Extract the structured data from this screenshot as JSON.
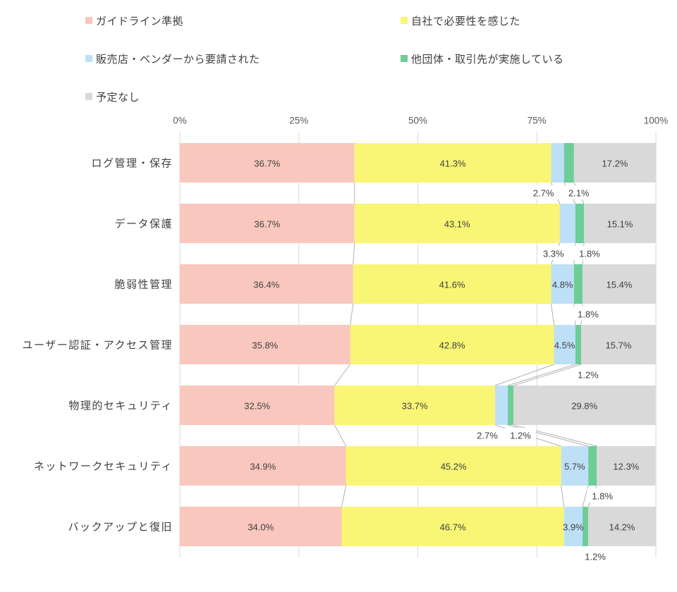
{
  "chart_data": {
    "type": "bar",
    "variant": "stacked-100-horizontal",
    "title": "",
    "xlabel": "",
    "ylabel": "",
    "xlim": [
      0,
      100
    ],
    "unit": "%",
    "grid": true,
    "legend_position": "top",
    "x_ticks": [
      "0%",
      "25%",
      "50%",
      "75%",
      "100%"
    ],
    "categories": [
      "ログ管理・保存",
      "データ保護",
      "脆弱性管理",
      "ユーザー認証・アクセス管理",
      "物理的セキュリティ",
      "ネットワークセキュリティ",
      "バックアップと復旧"
    ],
    "series": [
      {
        "name": "ガイドライン準拠",
        "color": "#F9C7BD",
        "values": [
          36.7,
          36.7,
          36.4,
          35.8,
          32.5,
          34.9,
          34.0
        ]
      },
      {
        "name": "自社で必要性を感じた",
        "color": "#F8F674",
        "values": [
          41.3,
          43.1,
          41.6,
          42.8,
          33.7,
          45.2,
          46.7
        ]
      },
      {
        "name": "販売店・ベンダーから要請された",
        "color": "#BEE0F7",
        "values": [
          2.7,
          3.3,
          4.8,
          4.5,
          2.7,
          5.7,
          3.9
        ]
      },
      {
        "name": "他団体・取引先が実施している",
        "color": "#6DCD97",
        "values": [
          2.1,
          1.8,
          1.8,
          1.2,
          1.2,
          1.8,
          1.2
        ]
      },
      {
        "name": "予定なし",
        "color": "#D9D9D9",
        "values": [
          17.2,
          15.1,
          15.4,
          15.7,
          29.8,
          12.3,
          14.2
        ]
      }
    ],
    "style": {
      "label_text_color": "#404040",
      "axis_text_color": "#595959",
      "gridline_color": "#D9D9D9",
      "connector_line_color": "#B2B2B2"
    }
  }
}
